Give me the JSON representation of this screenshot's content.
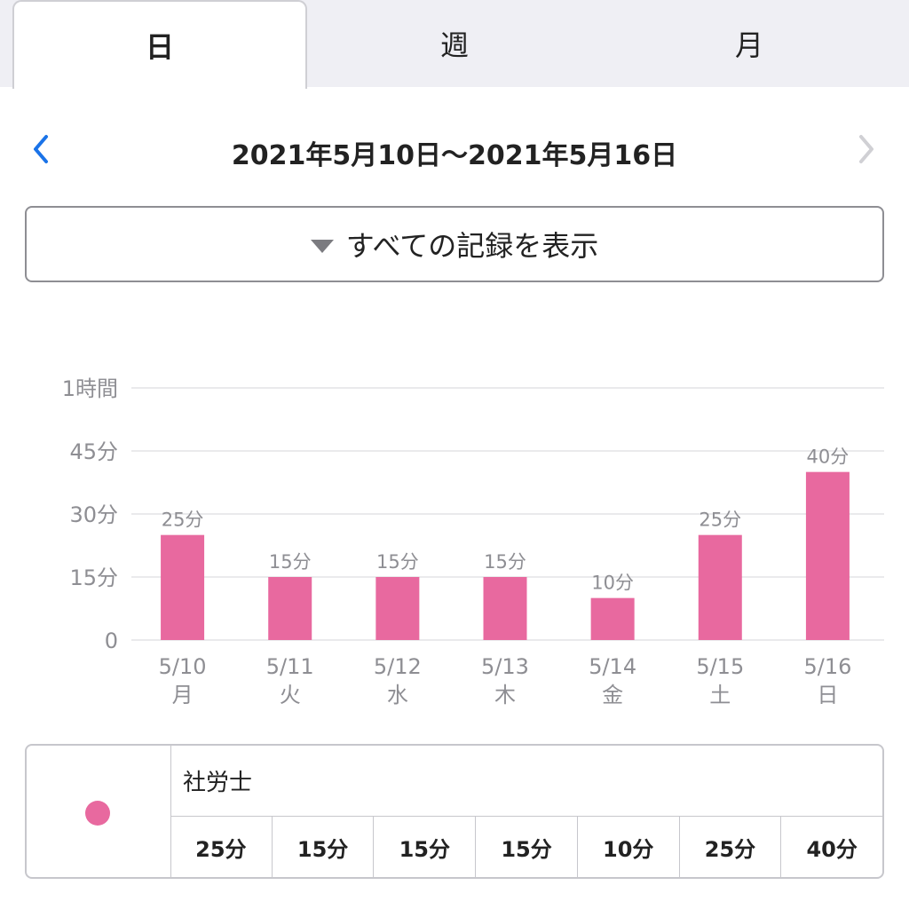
{
  "tabs": [
    {
      "label": "日",
      "active": true
    },
    {
      "label": "週",
      "active": false
    },
    {
      "label": "月",
      "active": false
    }
  ],
  "nav": {
    "title": "2021年5月10日〜2021年5月16日",
    "prev_icon": "chevron-left-icon",
    "next_icon": "chevron-right-icon",
    "prev_color": "#1a73e8",
    "next_color": "#d0d0d4"
  },
  "filter": {
    "label": "すべての記録を表示",
    "icon": "triangle-down-icon"
  },
  "chart_data": {
    "type": "bar",
    "categories": [
      "5/10",
      "5/11",
      "5/12",
      "5/13",
      "5/14",
      "5/15",
      "5/16"
    ],
    "weekdays": [
      "月",
      "火",
      "水",
      "木",
      "金",
      "土",
      "日"
    ],
    "values": [
      25,
      15,
      15,
      15,
      10,
      25,
      40
    ],
    "value_labels": [
      "25分",
      "15分",
      "15分",
      "15分",
      "10分",
      "25分",
      "40分"
    ],
    "ylim": [
      0,
      60
    ],
    "yticks": [
      0,
      15,
      30,
      45,
      60
    ],
    "ytick_labels": [
      "0",
      "15分",
      "30分",
      "45分",
      "1時間"
    ],
    "grid": true,
    "bar_color": "#e8699f",
    "unit": "分"
  },
  "legend": {
    "color": "#e8699f",
    "name": "社労士",
    "values": [
      "25分",
      "15分",
      "15分",
      "15分",
      "10分",
      "25分",
      "40分"
    ]
  }
}
